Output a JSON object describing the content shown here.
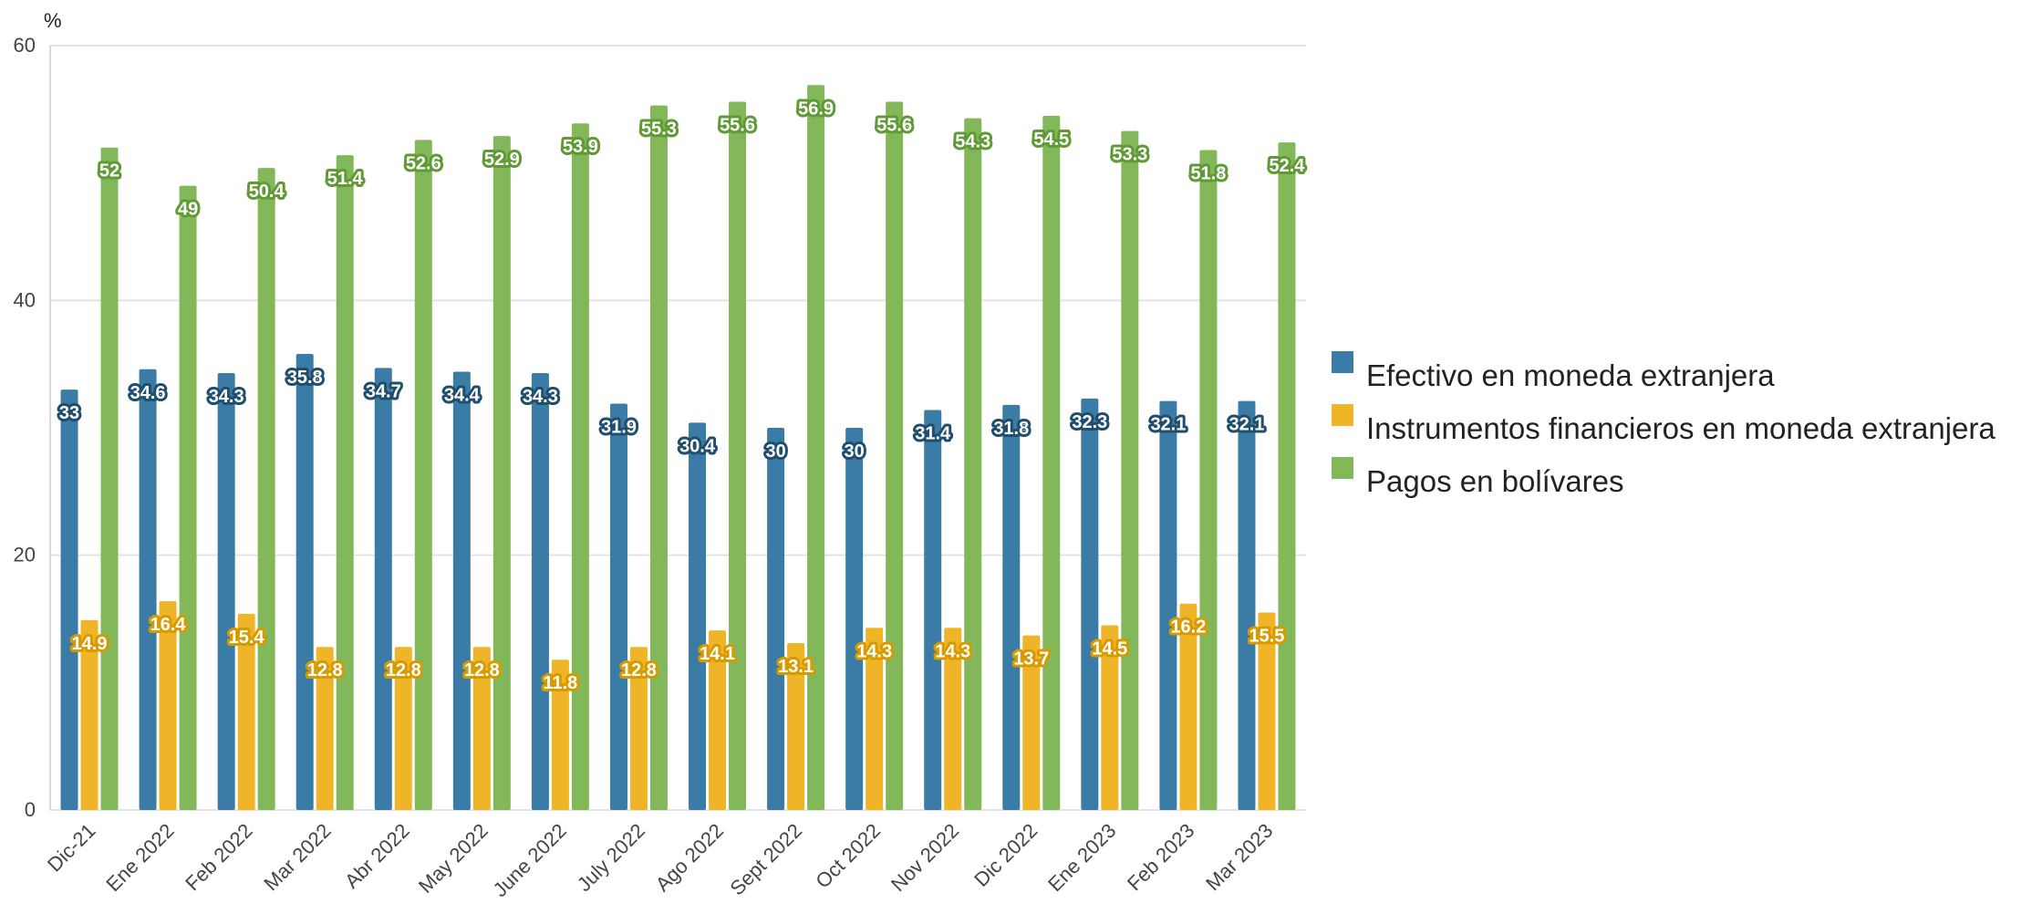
{
  "chart_data": {
    "type": "bar",
    "unit_label": "%",
    "ylim": [
      0,
      60
    ],
    "yticks": [
      0,
      20,
      40,
      60
    ],
    "grid": true,
    "legend_position": "right",
    "categories": [
      "Dic-21",
      "Ene 2022",
      "Feb 2022",
      "Mar 2022",
      "Abr 2022",
      "May 2022",
      "June 2022",
      "July 2022",
      "Ago 2022",
      "Sept 2022",
      "Oct 2022",
      "Nov 2022",
      "Dic 2022",
      "Ene 2023",
      "Feb 2023",
      "Mar 2023"
    ],
    "series": [
      {
        "name": "Efectivo en moneda extranjera",
        "color": "#3a7ca5",
        "values": [
          33,
          34.6,
          34.3,
          35.8,
          34.7,
          34.4,
          34.3,
          31.9,
          30.4,
          30,
          30,
          31.4,
          31.8,
          32.3,
          32.1,
          32.1
        ]
      },
      {
        "name": "Instrumentos financieros en moneda extranjera",
        "color": "#f0b429",
        "values": [
          14.9,
          16.4,
          15.4,
          12.8,
          12.8,
          12.8,
          11.8,
          12.8,
          14.1,
          13.1,
          14.3,
          14.3,
          13.7,
          14.5,
          16.2,
          15.5
        ]
      },
      {
        "name": "Pagos en bolívares",
        "color": "#82b85a",
        "values": [
          52,
          49,
          50.4,
          51.4,
          52.6,
          52.9,
          53.9,
          55.3,
          55.6,
          56.9,
          55.6,
          54.3,
          54.5,
          53.3,
          51.8,
          52.4
        ]
      }
    ],
    "label_outline_colors": [
      "#1f4e6e",
      "#d79b00",
      "#5f9a35"
    ]
  }
}
